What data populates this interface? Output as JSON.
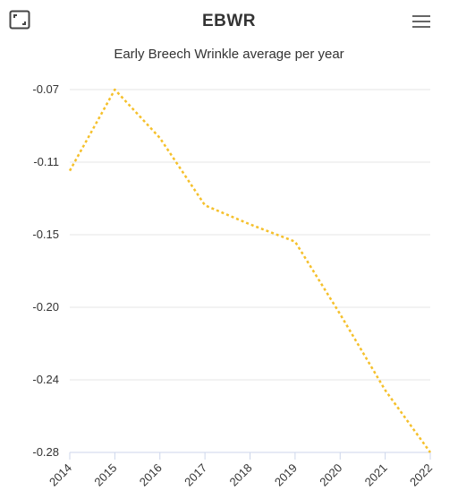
{
  "header": {
    "title": "EBWR",
    "expand_icon": "expand-icon",
    "menu_icon": "hamburger-menu-icon"
  },
  "chart_data": {
    "type": "line",
    "title": "Early Breech Wrinkle average per year",
    "xlabel": "",
    "ylabel": "",
    "categories": [
      "2014",
      "2015",
      "2016",
      "2017",
      "2018",
      "2019",
      "2020",
      "2021",
      "2022"
    ],
    "series": [
      {
        "values": [
          -0.117,
          -0.07,
          -0.098,
          -0.137,
          -0.148,
          -0.158,
          -0.2,
          -0.244,
          -0.28
        ]
      }
    ],
    "yticks": [
      "-0.07",
      "-0.11",
      "-0.15",
      "-0.20",
      "-0.24",
      "-0.28"
    ],
    "ylim": [
      -0.28,
      -0.07
    ],
    "grid": true,
    "line_style": "dotted",
    "color": "#f5c02b"
  }
}
